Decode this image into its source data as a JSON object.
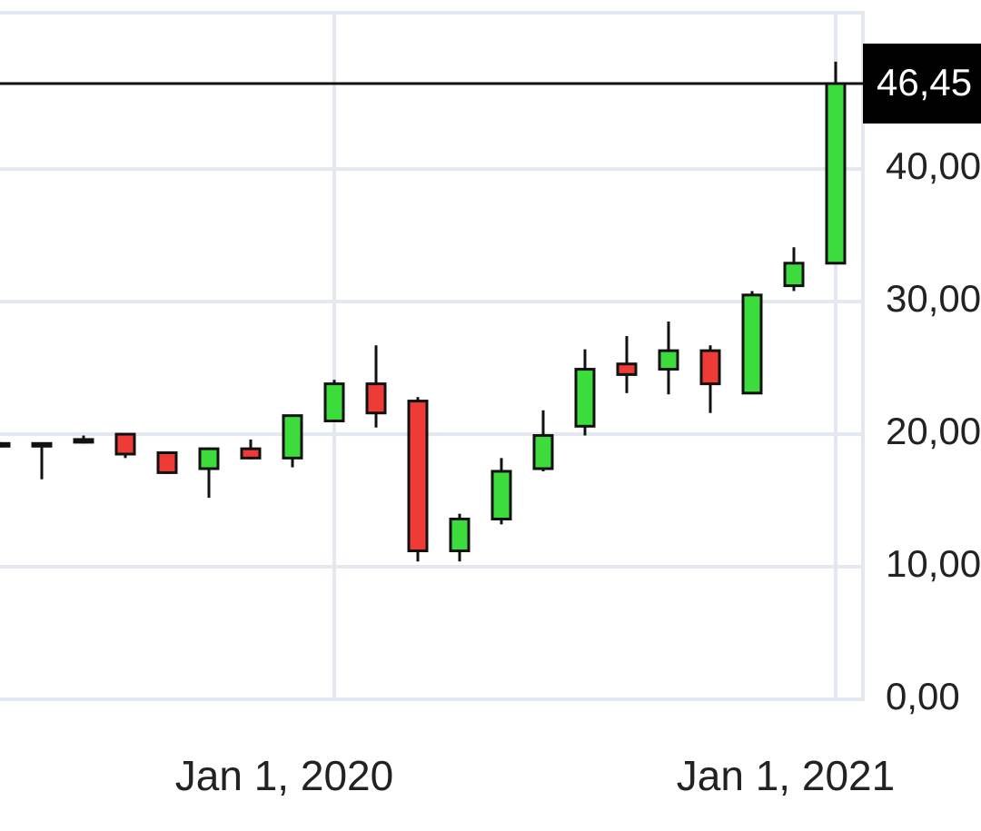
{
  "chart_data": {
    "type": "candlestick",
    "categories": [
      null,
      null,
      null,
      null,
      null,
      null,
      null,
      null,
      "Jan 1, 2020",
      null,
      null,
      null,
      null,
      null,
      null,
      null,
      null,
      null,
      null,
      null,
      "Jan 1, 2021"
    ],
    "open": [
      19.3,
      19.3,
      19.6,
      20.0,
      18.6,
      17.4,
      18.9,
      18.2,
      21.0,
      23.8,
      22.5,
      11.2,
      13.6,
      17.4,
      20.6,
      25.3,
      24.9,
      26.3,
      23.1,
      31.2,
      32.9
    ],
    "high": [
      19.4,
      19.3,
      19.9,
      20.0,
      18.7,
      19.0,
      19.6,
      21.4,
      24.1,
      26.7,
      22.8,
      14.0,
      18.2,
      21.8,
      26.4,
      27.4,
      28.5,
      26.7,
      30.8,
      34.1,
      48.1
    ],
    "low": [
      19.0,
      16.6,
      19.3,
      18.2,
      17.0,
      15.2,
      18.1,
      17.5,
      21.0,
      20.5,
      10.4,
      10.4,
      13.2,
      17.2,
      19.9,
      23.1,
      23.0,
      21.6,
      23.1,
      30.8,
      32.9
    ],
    "close": [
      19.1,
      19.1,
      19.4,
      18.5,
      17.1,
      18.9,
      18.2,
      21.4,
      23.8,
      21.6,
      11.2,
      13.6,
      17.2,
      19.9,
      24.9,
      24.5,
      26.3,
      23.8,
      30.5,
      32.9,
      46.45
    ],
    "up_color": "#3ddc3d",
    "down_color": "#ee3b36",
    "ylim": [
      0,
      52
    ],
    "yticks": [
      {
        "value": 0,
        "label": "0,00"
      },
      {
        "value": 10,
        "label": "10,00"
      },
      {
        "value": 20,
        "label": "20,00"
      },
      {
        "value": 30,
        "label": "30,00"
      },
      {
        "value": 40,
        "label": "40,00"
      }
    ],
    "last_price": {
      "value": 46.45,
      "label": "46,45"
    },
    "grid": true
  }
}
